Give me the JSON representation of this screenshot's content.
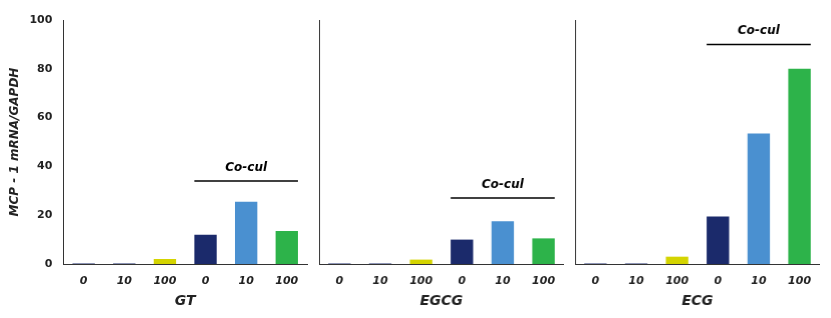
{
  "chart_data": [
    {
      "type": "bar",
      "categories": [
        "0",
        "10",
        "100",
        "0",
        "10",
        "100"
      ],
      "values": [
        0.2,
        0.2,
        2.0,
        12.0,
        25.5,
        13.5
      ],
      "colors": [
        "#1b2a6b",
        "#1b2a6b",
        "#d4d400",
        "#1b2a6b",
        "#4a90d0",
        "#2db34a"
      ],
      "xlabel": "GT",
      "ylabel": "MCP - 1 mRNA/GAPDH",
      "ylim": [
        0,
        100
      ],
      "yticks": [
        0,
        20,
        40,
        60,
        80,
        100
      ],
      "grid": false,
      "annotations": [
        {
          "text": "Co-cul",
          "y": 37,
          "bracket_y": 34,
          "span": [
            3,
            5
          ]
        }
      ]
    },
    {
      "type": "bar",
      "categories": [
        "0",
        "10",
        "100",
        "0",
        "10",
        "100"
      ],
      "values": [
        0.2,
        0.2,
        1.8,
        10.0,
        17.5,
        10.5
      ],
      "colors": [
        "#1b2a6b",
        "#1b2a6b",
        "#d4d400",
        "#1b2a6b",
        "#4a90d0",
        "#2db34a"
      ],
      "xlabel": "EGCG",
      "ylim": [
        0,
        100
      ],
      "yticks": [
        0,
        20,
        40,
        60,
        80,
        100
      ],
      "grid": false,
      "tick_labels": "x",
      "annotations": [
        {
          "text": "Co-cul",
          "y": 30,
          "bracket_y": 27,
          "span": [
            3,
            5
          ]
        }
      ]
    },
    {
      "type": "bar",
      "categories": [
        "0",
        "10",
        "100",
        "0",
        "10",
        "100"
      ],
      "values": [
        0.2,
        0.2,
        3.0,
        19.5,
        53.5,
        80.0
      ],
      "colors": [
        "#1b2a6b",
        "#1b2a6b",
        "#d4d400",
        "#1b2a6b",
        "#4a90d0",
        "#2db34a"
      ],
      "xlabel": "ECG",
      "ylim": [
        0,
        100
      ],
      "yticks": [
        0,
        20,
        40,
        60,
        80,
        100
      ],
      "grid": false,
      "tick_labels": "x",
      "annotations": [
        {
          "text": "Co-cul",
          "y": 93,
          "bracket_y": 90,
          "span": [
            3,
            5
          ]
        }
      ]
    }
  ]
}
